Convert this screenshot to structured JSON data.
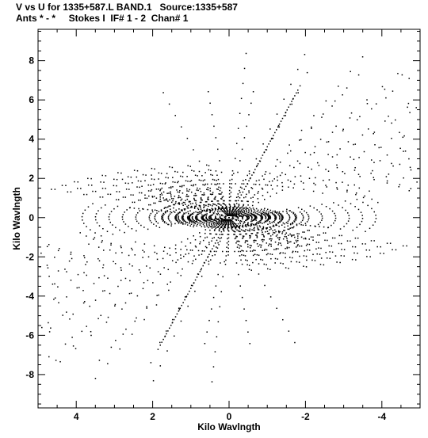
{
  "header": {
    "line1": "V vs U for 1335+587.L BAND.1   Source:1335+587",
    "line2": "Ants * - *     Stokes I  IF# 1 - 2  Chan# 1"
  },
  "chart_data": {
    "type": "scatter",
    "title": "V vs U for 1335+587.L BAND.1   Source:1335+587",
    "subtitle": "Ants * - *     Stokes I  IF# 1 - 2  Chan# 1",
    "xlabel": "Kilo Wavlngth",
    "ylabel": "Kilo Wavlngth",
    "xlim": [
      5.0,
      -5.0
    ],
    "ylim": [
      -9.7,
      9.6
    ],
    "x_ticks": [
      4,
      2,
      0,
      -2,
      -4
    ],
    "y_ticks": [
      8,
      6,
      4,
      2,
      0,
      -2,
      -4,
      -6,
      -8
    ],
    "x_tick_labels": [
      "4",
      "2",
      "0",
      "-2",
      "-4"
    ],
    "y_tick_labels": [
      "8",
      "6",
      "4",
      "2",
      "0",
      "-2",
      "-4",
      "-6",
      "-8"
    ],
    "grid": false,
    "marker_color": "#000000",
    "baselines": [
      {
        "tx": 1.85,
        "ty": 6.85,
        "n": 9
      },
      {
        "tx": -0.48,
        "ty": 9.0,
        "n": 9
      },
      {
        "tx": -2.2,
        "ty": 7.95,
        "n": 9
      },
      {
        "tx": -4.75,
        "ty": 7.9,
        "n": 9
      },
      {
        "tx": -3.6,
        "ty": 1.0,
        "n": 10
      },
      {
        "tx": -5.0,
        "ty": -1.55,
        "n": 10
      },
      {
        "tx": -1.8,
        "ty": -1.85,
        "n": 10
      },
      {
        "tx": 4.9,
        "ty": 1.55,
        "n": 10
      },
      {
        "tx": 3.0,
        "ty": 2.1,
        "n": 10
      },
      {
        "tx": 0.3,
        "ty": 0.6,
        "n": 10
      },
      {
        "tx": -1.0,
        "ty": 0.5,
        "n": 10
      },
      {
        "tx": 2.0,
        "ty": -0.3,
        "n": 9
      }
    ],
    "radial_lines": [
      {
        "x1": -1.8,
        "y1": 6.5,
        "x2": 1.8,
        "y2": -6.5,
        "n": 90
      },
      {
        "x1": 1.8,
        "y1": 1.05,
        "x2": -1.8,
        "y2": -1.05,
        "n": 44
      },
      {
        "x1": 2.6,
        "y1": 0.5,
        "x2": -2.6,
        "y2": -0.5,
        "n": 44
      },
      {
        "x1": -1.6,
        "y1": 0.35,
        "x2": 1.6,
        "y2": -0.35,
        "n": 34
      },
      {
        "x1": -2.2,
        "y1": -1.15,
        "x2": 2.2,
        "y2": 1.15,
        "n": 44
      },
      {
        "x1": -1.9,
        "y1": -1.45,
        "x2": 1.9,
        "y2": 1.45,
        "n": 40
      }
    ]
  }
}
